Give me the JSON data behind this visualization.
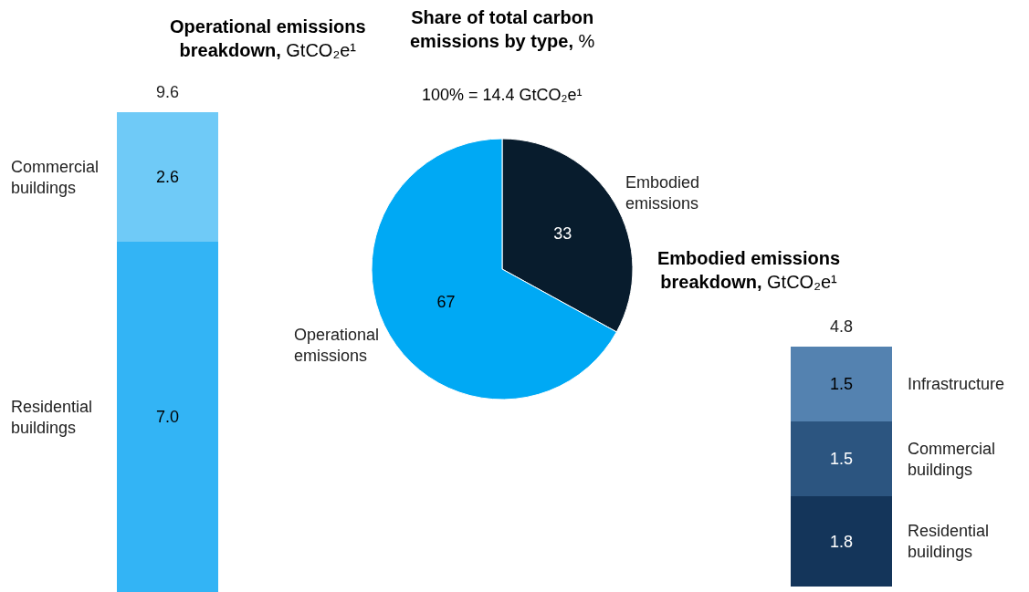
{
  "chart_data": [
    {
      "type": "bar",
      "title": "Operational emissions breakdown, GtCO₂e¹",
      "stacked": true,
      "categories": [
        null
      ],
      "totals": [
        "9.6"
      ],
      "series": [
        {
          "name": "Residential buildings",
          "color": "#33b4f5",
          "values": [
            7.0
          ],
          "value_labels": [
            "7.0"
          ]
        },
        {
          "name": "Commercial buildings",
          "color": "#6fcaf7",
          "values": [
            2.6
          ],
          "value_labels": [
            "2.6"
          ]
        }
      ]
    },
    {
      "type": "pie",
      "title": "Share of total carbon emissions by type, %",
      "subtitle": "100% = 14.4 GtCO₂e¹",
      "categories": [
        "Embodied emissions",
        "Operational emissions"
      ],
      "values": [
        33,
        67
      ],
      "colors": [
        "#081c2d",
        "#00a9f4"
      ],
      "data_labels": true
    },
    {
      "type": "bar",
      "title": "Embodied emissions breakdown, GtCO₂e¹",
      "stacked": true,
      "categories": [
        null
      ],
      "totals": [
        "4.8"
      ],
      "series": [
        {
          "name": "Residential buildings",
          "color": "#14355a",
          "values": [
            1.8
          ],
          "value_labels": [
            "1.8"
          ]
        },
        {
          "name": "Commercial buildings",
          "color": "#2c5580",
          "values": [
            1.5
          ],
          "value_labels": [
            "1.5"
          ]
        },
        {
          "name": "Infrastructure",
          "color": "#5482b0",
          "values": [
            1.5
          ],
          "value_labels": [
            "1.5"
          ]
        }
      ]
    }
  ]
}
